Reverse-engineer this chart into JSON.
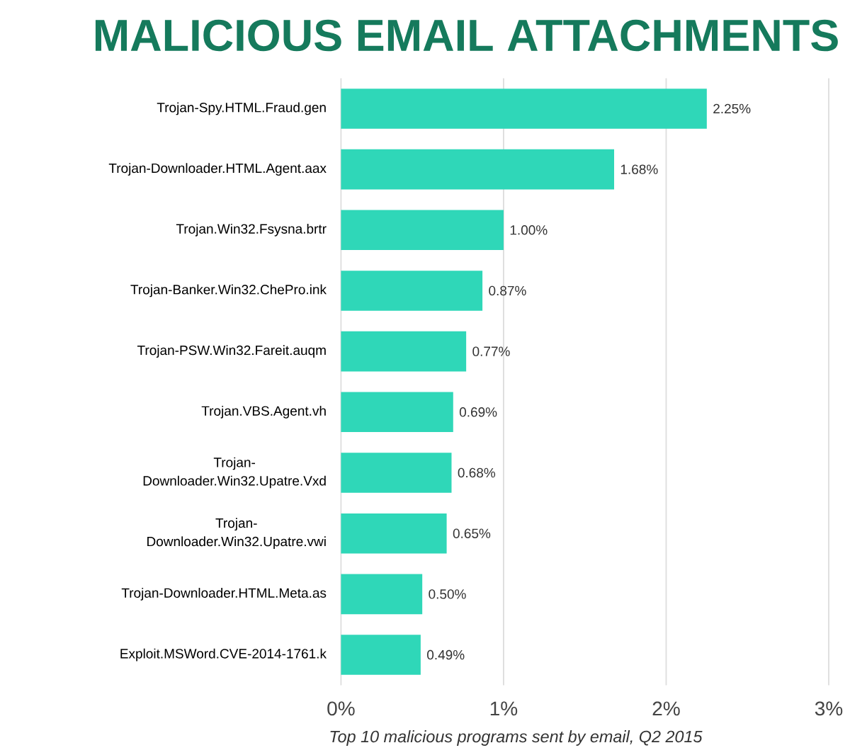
{
  "chart_data": {
    "type": "bar",
    "title": "MALICIOUS EMAIL ATTACHMENTS",
    "orientation": "horizontal",
    "categories": [
      "Trojan-Spy.HTML.Fraud.gen",
      "Trojan-Downloader.HTML.Agent.aax",
      "Trojan.Win32.Fsysna.brtr",
      "Trojan-Banker.Win32.ChePro.ink",
      "Trojan-PSW.Win32.Fareit.auqm",
      "Trojan.VBS.Agent.vh",
      "Trojan-Downloader.Win32.Upatre.Vxd",
      "Trojan-Downloader.Win32.Upatre.vwi",
      "Trojan-Downloader.HTML.Meta.as",
      "Exploit.MSWord.CVE-2014-1761.k"
    ],
    "values": [
      2.25,
      1.68,
      1.0,
      0.87,
      0.77,
      0.69,
      0.68,
      0.65,
      0.5,
      0.49
    ],
    "color": "#2fd7b8",
    "value_labels": [
      "2.25%",
      "1.68%",
      "1.00%",
      "0.87%",
      "0.77%",
      "0.69%",
      "0.68%",
      "0.65%",
      "0.50%",
      "0.49%"
    ],
    "xlim": [
      0,
      3
    ],
    "xticks": [
      {
        "value": 0,
        "label": "0%"
      },
      {
        "value": 1,
        "label": "1%"
      },
      {
        "value": 2,
        "label": "2%"
      },
      {
        "value": 3,
        "label": "3%"
      }
    ],
    "grid": "x",
    "annotations": [
      "Top 10 malicious programs sent by email, Q2 2015"
    ]
  }
}
